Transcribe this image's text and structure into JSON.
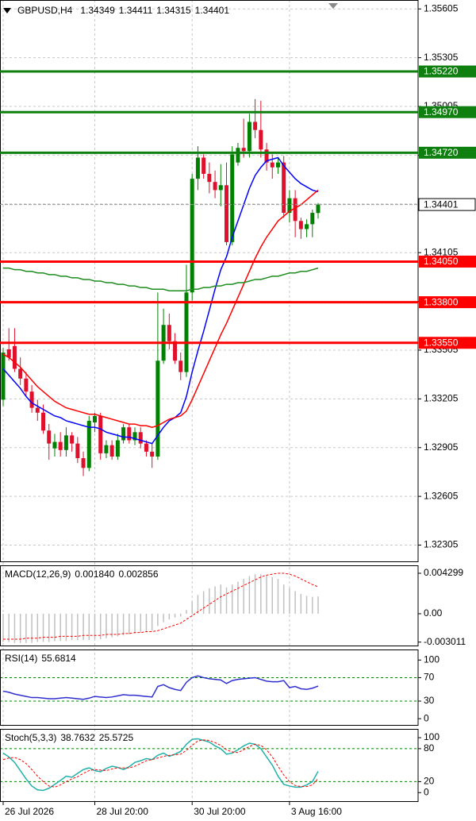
{
  "chart_data": [
    {
      "type": "candlestick",
      "title": "GBPUSD,H4",
      "open": [
        1.332,
        1.3351,
        1.3353,
        1.3339,
        1.3333,
        1.3325,
        1.3315,
        1.3312,
        1.3301,
        1.329,
        1.3294,
        1.3289,
        1.3298,
        1.3293,
        1.3284,
        1.3278,
        1.3306,
        1.331,
        1.3287,
        1.3292,
        1.3285,
        1.3295,
        1.3303,
        1.3295,
        1.33,
        1.3293,
        1.3288,
        1.3285,
        1.3344,
        1.3366,
        1.3356,
        1.3344,
        1.3337,
        1.3386,
        1.3456,
        1.3469,
        1.3459,
        1.3454,
        1.3449,
        1.3452,
        1.3417,
        1.3466,
        1.3475,
        1.3473,
        1.3491,
        1.3486,
        1.3474,
        1.3466,
        1.3463,
        1.3466,
        1.3435,
        1.3444,
        1.343,
        1.3425,
        1.3428,
        1.34349
      ],
      "high": [
        1.3352,
        1.3364,
        1.3364,
        1.3346,
        1.3337,
        1.3329,
        1.332,
        1.3317,
        1.3305,
        1.3299,
        1.33,
        1.3303,
        1.33,
        1.3297,
        1.3288,
        1.331,
        1.3312,
        1.3312,
        1.3295,
        1.3295,
        1.3299,
        1.3305,
        1.3305,
        1.3303,
        1.3303,
        1.3295,
        1.3293,
        1.3386,
        1.3376,
        1.3373,
        1.3361,
        1.3349,
        1.3403,
        1.3459,
        1.3476,
        1.3471,
        1.3466,
        1.3461,
        1.3465,
        1.3466,
        1.3476,
        1.3478,
        1.3493,
        1.3496,
        1.3505,
        1.3504,
        1.3478,
        1.3471,
        1.3469,
        1.347,
        1.3449,
        1.3449,
        1.3432,
        1.3431,
        1.3437,
        1.34411
      ],
      "low": [
        1.3316,
        1.3344,
        1.3337,
        1.3329,
        1.3322,
        1.3312,
        1.3307,
        1.3299,
        1.3283,
        1.3285,
        1.3285,
        1.3285,
        1.3288,
        1.3281,
        1.3273,
        1.3276,
        1.33,
        1.3283,
        1.3284,
        1.3283,
        1.3283,
        1.3293,
        1.3293,
        1.3292,
        1.329,
        1.3285,
        1.3278,
        1.3283,
        1.3342,
        1.3351,
        1.3342,
        1.3332,
        1.3334,
        1.3381,
        1.3449,
        1.3456,
        1.3447,
        1.3444,
        1.3439,
        1.3415,
        1.3415,
        1.3464,
        1.3469,
        1.3469,
        1.3481,
        1.3469,
        1.3461,
        1.3456,
        1.3459,
        1.3432,
        1.3429,
        1.342,
        1.3419,
        1.342,
        1.342,
        1.34315
      ],
      "close": [
        1.3349,
        1.3346,
        1.3339,
        1.3333,
        1.3325,
        1.3315,
        1.3312,
        1.3301,
        1.3293,
        1.3294,
        1.3289,
        1.3298,
        1.3293,
        1.3284,
        1.3278,
        1.3307,
        1.331,
        1.3287,
        1.3292,
        1.3285,
        1.3295,
        1.3303,
        1.3295,
        1.33,
        1.3293,
        1.3288,
        1.3285,
        1.3344,
        1.3366,
        1.3356,
        1.3344,
        1.3337,
        1.3386,
        1.3456,
        1.3469,
        1.3459,
        1.3454,
        1.3449,
        1.3452,
        1.3417,
        1.3471,
        1.3475,
        1.3473,
        1.3491,
        1.3486,
        1.3474,
        1.3466,
        1.3463,
        1.3466,
        1.3435,
        1.3444,
        1.343,
        1.3425,
        1.3428,
        1.3435,
        1.34401
      ],
      "up_color": "#008000",
      "down_color": "#e0102c",
      "series": [
        {
          "style": "line",
          "color": "#0000ff",
          "values": [
            1.3339,
            1.3335,
            1.3331,
            1.3327,
            1.3322,
            1.3318,
            1.3316,
            1.3314,
            1.3312,
            1.331,
            1.3309,
            1.3307,
            1.3306,
            1.3305,
            1.3304,
            1.3303,
            1.3303,
            1.3302,
            1.33,
            1.3299,
            1.3298,
            1.3297,
            1.3297,
            1.3296,
            1.3295,
            1.3294,
            1.3293,
            1.3298,
            1.3303,
            1.3307,
            1.3309,
            1.3312,
            1.3322,
            1.3337,
            1.335,
            1.3362,
            1.3375,
            1.3388,
            1.34,
            1.3408,
            1.342,
            1.343,
            1.344,
            1.345,
            1.3458,
            1.3463,
            1.3467,
            1.3468,
            1.3469,
            1.3464,
            1.346,
            1.3456,
            1.3453,
            1.3451,
            1.3449,
            1.3448
          ]
        },
        {
          "style": "line",
          "color": "#ff0000",
          "values": [
            1.3348,
            1.3346,
            1.3343,
            1.334,
            1.3336,
            1.3332,
            1.3328,
            1.3325,
            1.3322,
            1.3319,
            1.3317,
            1.3315,
            1.3314,
            1.3313,
            1.3312,
            1.3311,
            1.3311,
            1.331,
            1.3309,
            1.3308,
            1.3307,
            1.3306,
            1.3305,
            1.3305,
            1.3304,
            1.3304,
            1.3303,
            1.3304,
            1.3306,
            1.3308,
            1.3309,
            1.331,
            1.3313,
            1.332,
            1.3328,
            1.3336,
            1.3344,
            1.3352,
            1.336,
            1.3367,
            1.3375,
            1.3383,
            1.3391,
            1.3399,
            1.3407,
            1.3414,
            1.342,
            1.3425,
            1.343,
            1.3433,
            1.3436,
            1.3438,
            1.344,
            1.3443,
            1.3446,
            1.3449
          ]
        },
        {
          "style": "line",
          "color": "#1e8c1e",
          "values": [
            1.3401,
            1.3401,
            1.34,
            1.34,
            1.3399,
            1.3399,
            1.3398,
            1.3398,
            1.3397,
            1.3397,
            1.3396,
            1.3396,
            1.3395,
            1.3395,
            1.3394,
            1.3394,
            1.3393,
            1.3393,
            1.3392,
            1.3392,
            1.3391,
            1.3391,
            1.339,
            1.339,
            1.3389,
            1.3389,
            1.3388,
            1.3388,
            1.3388,
            1.3387,
            1.3387,
            1.3387,
            1.3387,
            1.3388,
            1.3388,
            1.3389,
            1.3389,
            1.339,
            1.339,
            1.3391,
            1.3391,
            1.3392,
            1.3392,
            1.3393,
            1.3394,
            1.3394,
            1.3395,
            1.3396,
            1.3396,
            1.3397,
            1.3398,
            1.3398,
            1.3399,
            1.3399,
            1.34,
            1.3401
          ]
        }
      ],
      "ylim": [
        1.322,
        1.3566
      ],
      "yticks": [
        1.35605,
        1.35305,
        1.35005,
        1.34705,
        1.34405,
        1.34105,
        1.33805,
        1.33505,
        1.33205,
        1.32905,
        1.32605,
        1.32305
      ],
      "grid": true,
      "hlines": [
        {
          "value": 1.3522,
          "label": "1.35220",
          "color": "#0f7f0f"
        },
        {
          "value": 1.3497,
          "label": "1.34970",
          "color": "#0f7f0f"
        },
        {
          "value": 1.3472,
          "label": "1.34720",
          "color": "#0f7f0f"
        },
        {
          "value": 1.3405,
          "label": "1.34050",
          "color": "#ff0000"
        },
        {
          "value": 1.338,
          "label": "1.33800",
          "color": "#ff0000"
        },
        {
          "value": 1.3355,
          "label": "1.33550",
          "color": "#ff0000"
        }
      ],
      "price_line": {
        "value": 1.34401,
        "label": "1.34401"
      }
    },
    {
      "type": "indicator",
      "label": "MACD(12,26,9)",
      "series": [
        {
          "style": "bar",
          "color": "#c0c0c0",
          "values": [
            -0.003,
            -0.003,
            -0.0031,
            -0.0031,
            -0.0031,
            -0.0031,
            -0.003,
            -0.003,
            -0.003,
            -0.0029,
            -0.0029,
            -0.0029,
            -0.0028,
            -0.0028,
            -0.0028,
            -0.0028,
            -0.0027,
            -0.0027,
            -0.0026,
            -0.0025,
            -0.0024,
            -0.0023,
            -0.0022,
            -0.0021,
            -0.002,
            -0.0019,
            -0.0018,
            -0.0013,
            -0.0009,
            -0.0006,
            -0.0004,
            -0.0003,
            0.0004,
            0.0013,
            0.002,
            0.0024,
            0.0027,
            0.0029,
            0.0031,
            0.0028,
            0.0031,
            0.0034,
            0.0037,
            0.004,
            0.0042,
            0.0042,
            0.0041,
            0.0039,
            0.0037,
            0.0031,
            0.0027,
            0.0024,
            0.0021,
            0.0019,
            0.0018,
            0.00184
          ],
          "value_labels": [
            null,
            null,
            null,
            null,
            null,
            null,
            null,
            null,
            null,
            null,
            null,
            null,
            null,
            null,
            null,
            null,
            null,
            null,
            null,
            null,
            null,
            null,
            null,
            null,
            null,
            null,
            null,
            null,
            null,
            null,
            null,
            null,
            null,
            null,
            null,
            null,
            null,
            null,
            null,
            null,
            null,
            null,
            null,
            null,
            null,
            null,
            null,
            null,
            null,
            null,
            null,
            null,
            null,
            null,
            null,
            "0.001840"
          ]
        },
        {
          "style": "dashed",
          "color": "#ff0000",
          "values": [
            -0.0027,
            -0.0027,
            -0.0027,
            -0.0027,
            -0.0026,
            -0.0026,
            -0.0026,
            -0.0025,
            -0.0025,
            -0.0025,
            -0.0024,
            -0.0024,
            -0.0024,
            -0.0024,
            -0.0023,
            -0.0023,
            -0.0023,
            -0.0023,
            -0.0022,
            -0.0022,
            -0.0022,
            -0.0021,
            -0.0021,
            -0.002,
            -0.002,
            -0.0019,
            -0.0019,
            -0.0018,
            -0.0016,
            -0.0014,
            -0.0012,
            -0.001,
            -0.0006,
            -0.0002,
            0.0002,
            0.0006,
            0.001,
            0.0014,
            0.0018,
            0.0021,
            0.0024,
            0.0027,
            0.003,
            0.0033,
            0.0036,
            0.0039,
            0.0041,
            0.0042,
            0.0043,
            0.0043,
            0.0042,
            0.004,
            0.0037,
            0.0034,
            0.0031,
            0.002856
          ]
        }
      ],
      "ylim": [
        -0.00346,
        0.00514
      ],
      "yticks": [
        0.004299,
        {
          "value": 0,
          "label": "0.00"
        },
        -0.003011
      ]
    },
    {
      "type": "indicator",
      "label": "RSI(14)",
      "series": [
        {
          "style": "line",
          "color": "#2f2fd0",
          "values": [
            47,
            45,
            42,
            40,
            38,
            36,
            36,
            35,
            34,
            34,
            35,
            36,
            35,
            34,
            33,
            35,
            38,
            37,
            36,
            37,
            39,
            41,
            40,
            40,
            39,
            38,
            37,
            55,
            58,
            53,
            50,
            48,
            62,
            70,
            73,
            70,
            68,
            67,
            66,
            60,
            65,
            67,
            68,
            69,
            70,
            67,
            64,
            63,
            63,
            65,
            53,
            55,
            51,
            50,
            52,
            55.6814
          ]
        }
      ],
      "ylim": [
        -12,
        118
      ],
      "yticks": [
        100,
        70,
        30,
        0
      ],
      "levels": [
        70,
        30
      ],
      "level_color": "#008000"
    },
    {
      "type": "indicator",
      "label": "Stoch(5,3,3)",
      "series": [
        {
          "style": "line",
          "color": "#20b2aa",
          "values": [
            72,
            65,
            55,
            40,
            25,
            12,
            5,
            4,
            8,
            15,
            22,
            30,
            28,
            35,
            42,
            45,
            40,
            38,
            44,
            48,
            46,
            42,
            47,
            55,
            58,
            62,
            60,
            68,
            72,
            66,
            70,
            75,
            88,
            97,
            98,
            95,
            92,
            85,
            80,
            70,
            72,
            78,
            85,
            90,
            88,
            80,
            65,
            50,
            30,
            15,
            12,
            10,
            10,
            14,
            20,
            38.7632
          ]
        },
        {
          "style": "dashed",
          "color": "#ff0000",
          "values": [
            60,
            63,
            64,
            60,
            53,
            42,
            30,
            20,
            12,
            10,
            14,
            20,
            25,
            29,
            35,
            40,
            42,
            41,
            40,
            43,
            45,
            45,
            45,
            48,
            53,
            58,
            60,
            63,
            66,
            68,
            69,
            70,
            77,
            86,
            94,
            96,
            95,
            91,
            86,
            78,
            74,
            73,
            78,
            84,
            88,
            86,
            78,
            65,
            48,
            32,
            20,
            13,
            11,
            11,
            14,
            25.5725
          ]
        }
      ],
      "ylim": [
        -17,
        116
      ],
      "yticks": [
        100,
        80,
        20,
        0
      ],
      "levels": [
        80,
        20
      ],
      "level_color": "#008000",
      "categories": [
        "26 Jul 2026",
        null,
        null,
        null,
        null,
        null,
        null,
        null,
        null,
        null,
        null,
        null,
        null,
        null,
        null,
        null,
        "28 Jul 20:00",
        null,
        null,
        null,
        null,
        null,
        null,
        null,
        null,
        null,
        null,
        null,
        null,
        null,
        null,
        null,
        null,
        "30 Jul 20:00",
        null,
        null,
        null,
        null,
        null,
        null,
        null,
        null,
        null,
        null,
        null,
        null,
        null,
        null,
        null,
        null,
        "3 Aug 16:00",
        null,
        null,
        null,
        null,
        null
      ]
    }
  ]
}
